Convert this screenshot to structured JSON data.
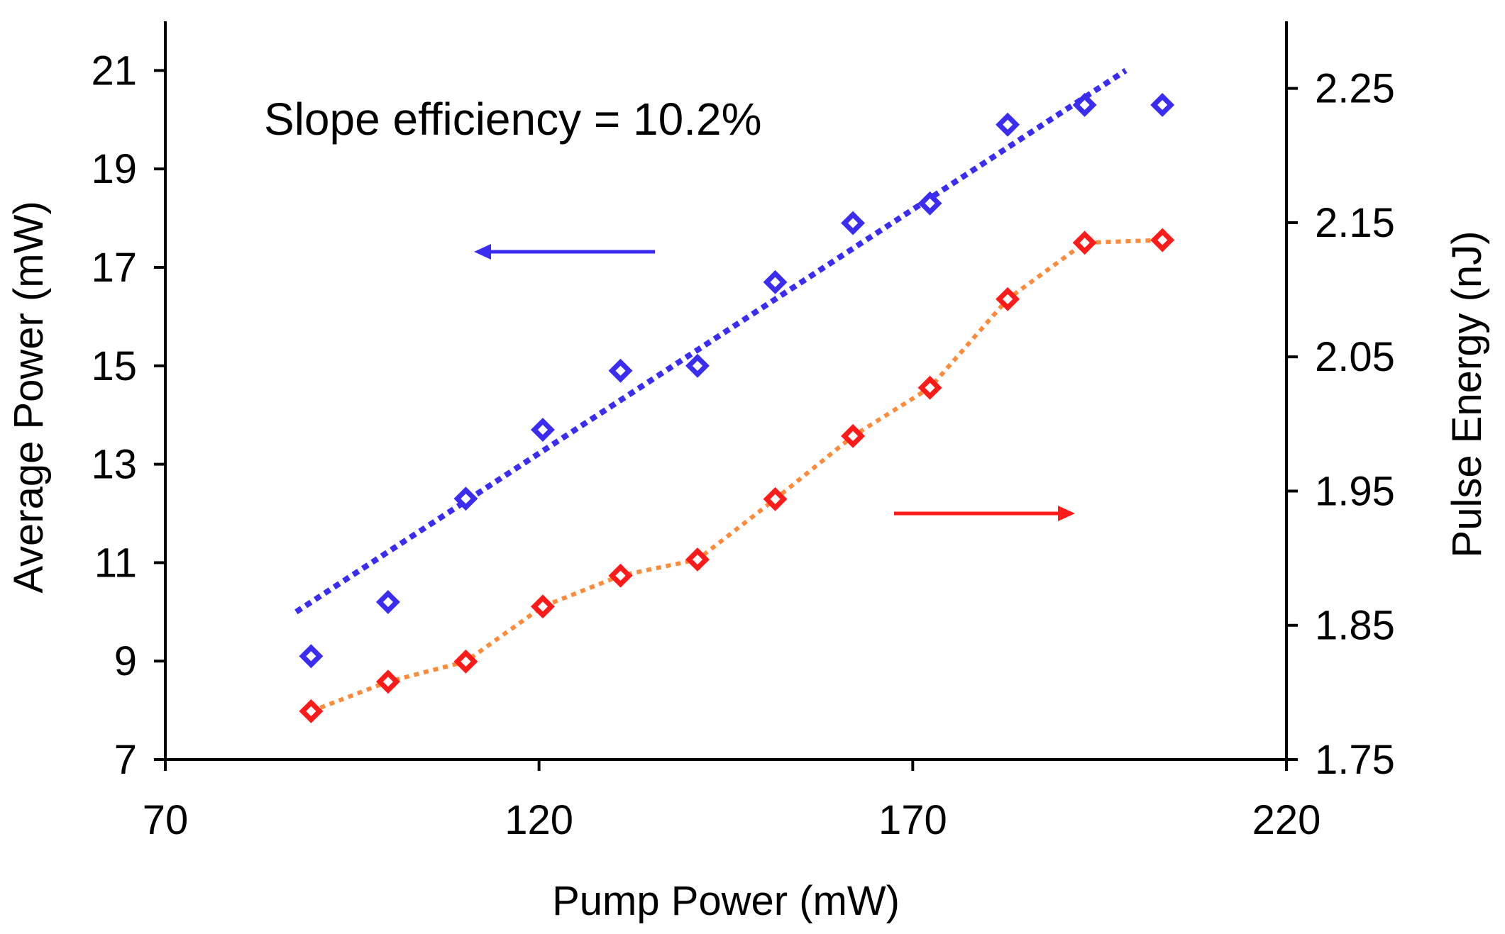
{
  "chart_data": {
    "type": "scatter",
    "annotation": "Slope efficiency = 10.2%",
    "xlabel": "Pump Power (mW)",
    "ylabel_left": "Average Power (mW)",
    "ylabel_right": "Pulse Energy (nJ)",
    "xlim": [
      70,
      220
    ],
    "ylim_left": [
      7,
      22
    ],
    "ylim_right": [
      1.75,
      2.3
    ],
    "x_ticks": [
      70,
      120,
      170,
      220
    ],
    "y_ticks_left": [
      7,
      9,
      11,
      13,
      15,
      17,
      19,
      21
    ],
    "y_ticks_right": [
      1.75,
      1.85,
      1.95,
      2.05,
      2.15,
      2.25
    ],
    "y_tick_labels_right": [
      "1.75",
      "1.85",
      "1.95",
      "2.05",
      "2.15",
      "2.25"
    ],
    "grid": false,
    "x": [
      89.5,
      99.8,
      110.2,
      120.5,
      130.9,
      141.2,
      151.6,
      162.0,
      172.3,
      182.7,
      193.0,
      203.4
    ],
    "series": [
      {
        "axis": "left",
        "color": "#3a2cf0",
        "marker": "diamond",
        "values": [
          9.1,
          10.2,
          12.3,
          13.7,
          14.9,
          15.0,
          16.7,
          17.9,
          18.3,
          19.9,
          20.3,
          20.3
        ]
      },
      {
        "axis": "right",
        "color": "#ff1a1a",
        "marker": "diamond",
        "connector_color": "#ff8a3a",
        "values": [
          1.786,
          1.808,
          1.823,
          1.864,
          1.887,
          1.899,
          1.944,
          1.991,
          2.027,
          2.093,
          2.135,
          2.137
        ]
      }
    ],
    "trendline": {
      "color": "#3a2cf0",
      "style": "dotted",
      "x": [
        87.5,
        198.5
      ],
      "y": [
        10.0,
        21.0
      ]
    },
    "arrows": [
      {
        "color": "#3a2cf0",
        "direction": "left",
        "points_to": "left-axis"
      },
      {
        "color": "#ff1a1a",
        "direction": "right",
        "points_to": "right-axis"
      }
    ]
  }
}
